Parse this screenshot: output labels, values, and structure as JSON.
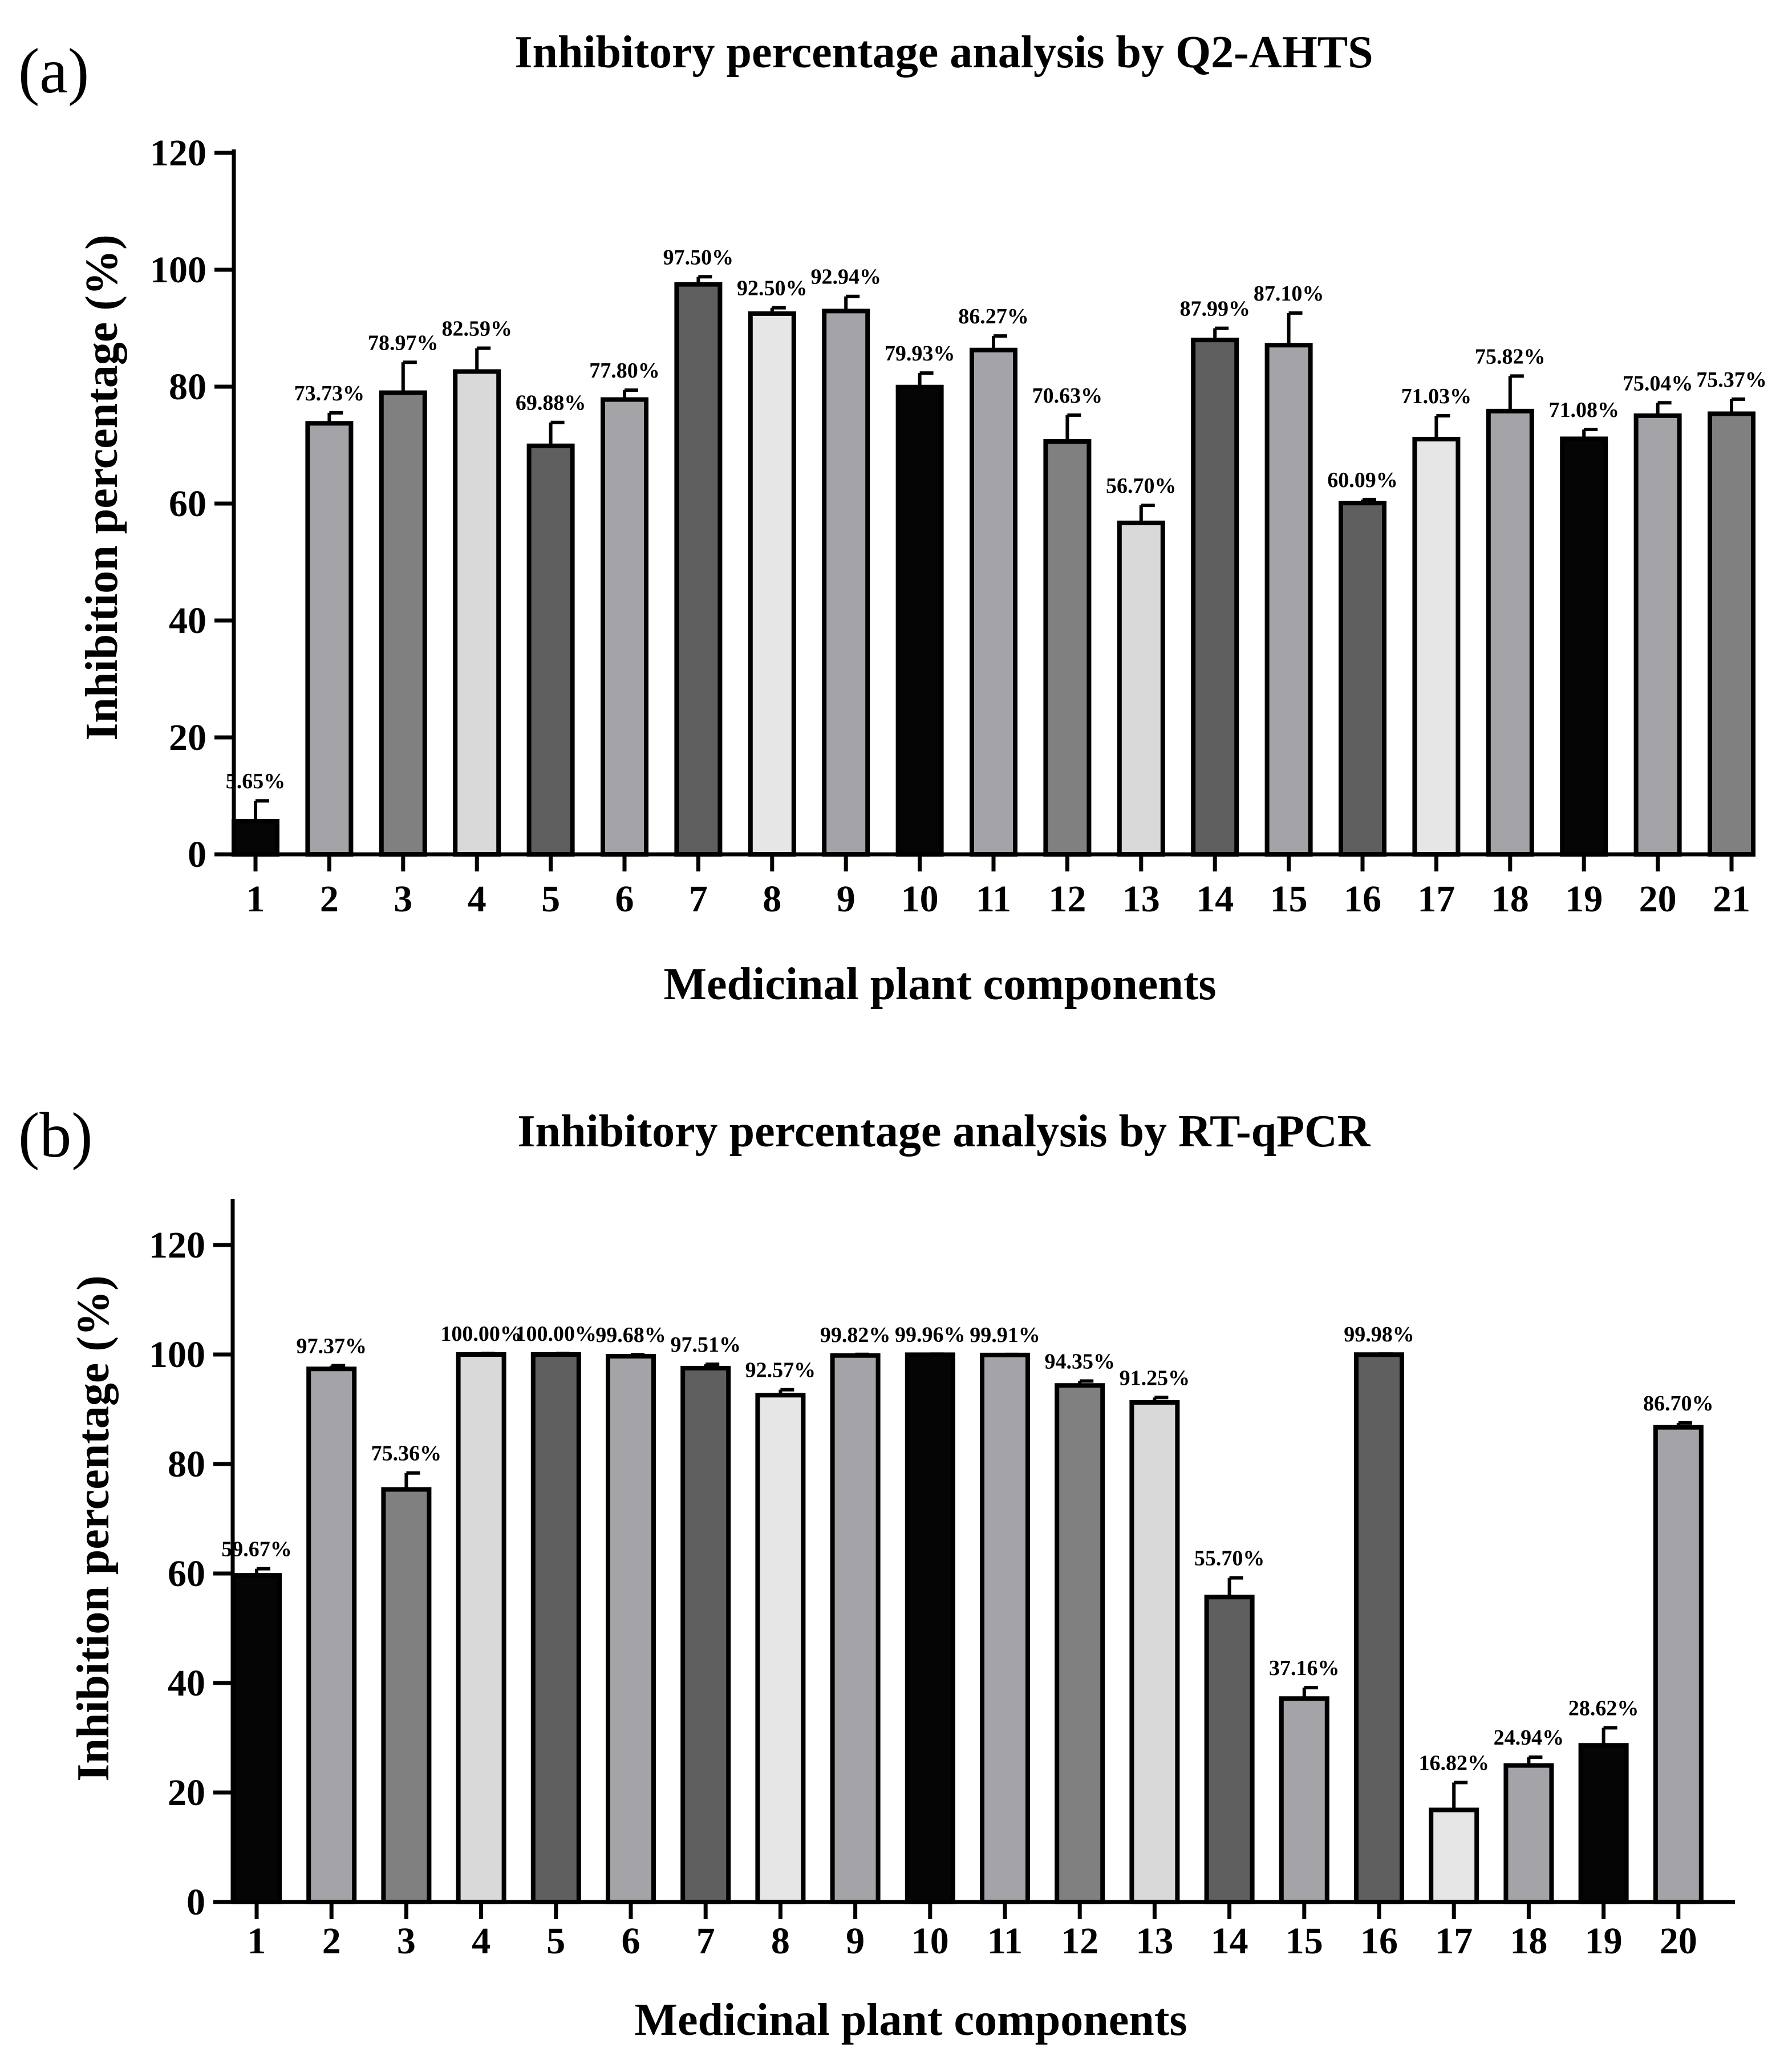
{
  "panels": [
    {
      "letter": "(a)"
    },
    {
      "letter": "(b)"
    }
  ],
  "chart_data": [
    {
      "type": "bar",
      "title": "Inhibitory percentage analysis by Q2-AHTS",
      "xlabel": "Medicinal plant components",
      "ylabel": "Inhibition percentage (%)",
      "ylim": [
        0,
        120
      ],
      "yticks": [
        0,
        20,
        40,
        60,
        80,
        100,
        120
      ],
      "grid": false,
      "categories": [
        "1",
        "2",
        "3",
        "4",
        "5",
        "6",
        "7",
        "8",
        "9",
        "10",
        "11",
        "12",
        "13",
        "14",
        "15",
        "16",
        "17",
        "18",
        "19",
        "20",
        "21"
      ],
      "values": [
        5.65,
        73.73,
        78.97,
        82.59,
        69.88,
        77.8,
        97.5,
        92.5,
        92.94,
        79.93,
        86.27,
        70.63,
        56.7,
        87.99,
        87.1,
        60.09,
        71.03,
        75.82,
        71.08,
        75.04,
        75.37
      ],
      "errors": [
        3.5,
        1.8,
        5.2,
        4.0,
        4.0,
        1.6,
        1.3,
        1.0,
        2.5,
        2.4,
        2.4,
        4.5,
        3.0,
        2.0,
        5.5,
        0.6,
        4.0,
        6.0,
        1.6,
        2.2,
        2.5
      ],
      "data_labels": [
        "5.65%",
        "73.73%",
        "78.97%",
        "82.59%",
        "69.88%",
        "77.80%",
        "97.50%",
        "92.50%",
        "92.94%",
        "79.93%",
        "86.27%",
        "70.63%",
        "56.70%",
        "87.99%",
        "87.10%",
        "60.09%",
        "71.03%",
        "75.82%",
        "71.08%",
        "75.04%",
        "75.37%"
      ],
      "colors": [
        "#050505",
        "#a4a4a8",
        "#808080",
        "#d9d9d9",
        "#5f5f5f",
        "#a4a4a8",
        "#5f5f5f",
        "#e6e6e6",
        "#a4a4a8",
        "#050505",
        "#a4a4a8",
        "#808080",
        "#d9d9d9",
        "#5f5f5f",
        "#a4a4a8",
        "#5f5f5f",
        "#e6e6e6",
        "#a4a4a8",
        "#050505",
        "#a4a4a8",
        "#808080"
      ]
    },
    {
      "type": "bar",
      "title": "Inhibitory percentage analysis by RT-qPCR",
      "xlabel": "Medicinal plant components",
      "ylabel": "Inhibition percentage (%)",
      "ylim": [
        0,
        128
      ],
      "yticks": [
        0,
        20,
        40,
        60,
        80,
        100,
        120
      ],
      "grid": false,
      "categories": [
        "1",
        "2",
        "3",
        "4",
        "5",
        "6",
        "7",
        "8",
        "9",
        "10",
        "11",
        "12",
        "13",
        "14",
        "15",
        "16",
        "17",
        "18",
        "19",
        "20"
      ],
      "values": [
        59.67,
        97.37,
        75.36,
        100.0,
        100.0,
        99.68,
        97.51,
        92.57,
        99.82,
        99.96,
        99.91,
        94.35,
        91.25,
        55.7,
        37.16,
        99.98,
        16.82,
        24.94,
        28.62,
        86.7
      ],
      "errors": [
        1.2,
        0.6,
        3.0,
        0.2,
        0.2,
        0.3,
        0.7,
        1.0,
        0.2,
        0.1,
        0.1,
        0.8,
        0.9,
        3.5,
        2.0,
        0.1,
        5.0,
        1.5,
        3.2,
        0.8
      ],
      "data_labels": [
        "59.67%",
        "97.37%",
        "75.36%",
        "100.00%",
        "100.00%",
        "99.68%",
        "97.51%",
        "92.57%",
        "99.82%",
        "99.96%",
        "99.91%",
        "94.35%",
        "91.25%",
        "55.70%",
        "37.16%",
        "99.98%",
        "16.82%",
        "24.94%",
        "28.62%",
        "86.70%"
      ],
      "colors": [
        "#050505",
        "#a4a4a8",
        "#808080",
        "#d9d9d9",
        "#5f5f5f",
        "#a4a4a8",
        "#5f5f5f",
        "#e6e6e6",
        "#a4a4a8",
        "#050505",
        "#a4a4a8",
        "#808080",
        "#d9d9d9",
        "#5f5f5f",
        "#a4a4a8",
        "#5f5f5f",
        "#e6e6e6",
        "#a4a4a8",
        "#050505",
        "#a4a4a8"
      ]
    }
  ]
}
